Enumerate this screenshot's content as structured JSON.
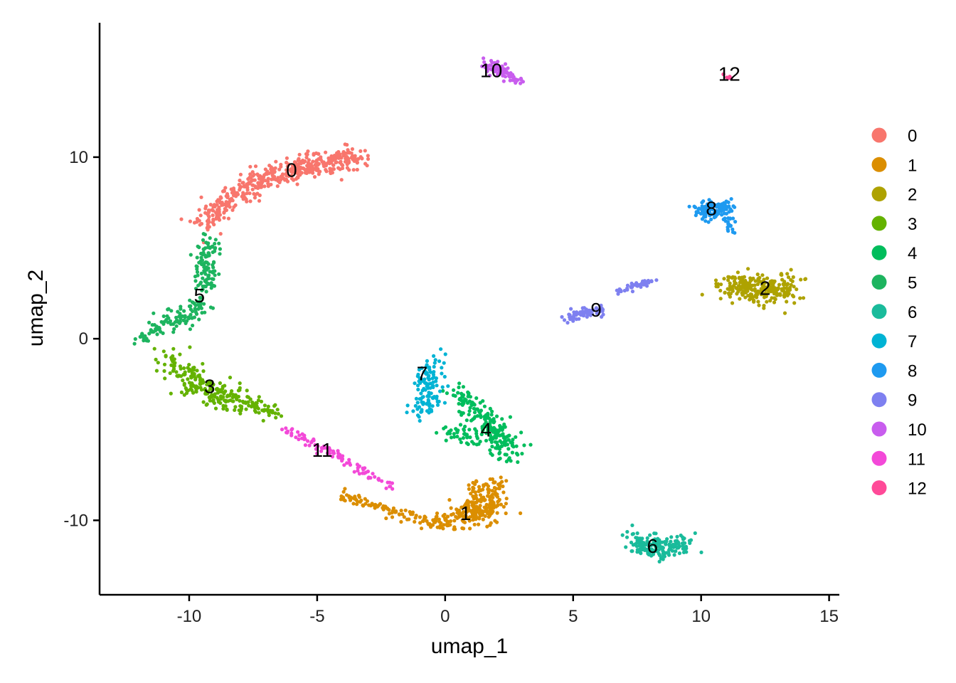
{
  "chart_data": {
    "type": "scatter",
    "xlabel": "umap_1",
    "ylabel": "umap_2",
    "xlim": [
      -13.5,
      15.4
    ],
    "ylim": [
      -14.1,
      17.4
    ],
    "xticks": [
      -10,
      -5,
      0,
      5,
      10,
      15
    ],
    "xtick_labels": [
      "-10",
      "-5",
      "0",
      "5",
      "10",
      "15"
    ],
    "yticks": [
      -10,
      0,
      10
    ],
    "ytick_labels": [
      "-10",
      "0",
      "10"
    ],
    "grid": false,
    "legend_position": "right",
    "series": [
      {
        "name": "0",
        "color": "#F8766D",
        "label_pos": [
          -6.0,
          9.2
        ],
        "segments": [
          {
            "from": [
              -9.5,
              6.3
            ],
            "to": [
              -8.0,
              8.2
            ],
            "count": 120,
            "spread": 0.55
          },
          {
            "from": [
              -8.0,
              8.2
            ],
            "to": [
              -6.0,
              9.3
            ],
            "count": 140,
            "spread": 0.55
          },
          {
            "from": [
              -6.0,
              9.3
            ],
            "to": [
              -3.4,
              10.0
            ],
            "count": 200,
            "spread": 0.6
          }
        ]
      },
      {
        "name": "1",
        "color": "#DB8E00",
        "label_pos": [
          0.8,
          -9.7
        ],
        "segments": [
          {
            "from": [
              -4.0,
              -8.6
            ],
            "to": [
              -2.0,
              -9.5
            ],
            "count": 50,
            "spread": 0.25
          },
          {
            "from": [
              -2.0,
              -9.5
            ],
            "to": [
              0.0,
              -10.3
            ],
            "count": 60,
            "spread": 0.35
          },
          {
            "from": [
              0.5,
              -9.8
            ],
            "to": [
              2.0,
              -9.0
            ],
            "count": 200,
            "spread": 0.75
          },
          {
            "from": [
              1.2,
              -8.2
            ],
            "to": [
              2.2,
              -8.0
            ],
            "count": 40,
            "spread": 0.4
          }
        ]
      },
      {
        "name": "2",
        "color": "#AEA200",
        "label_pos": [
          12.5,
          2.7
        ],
        "segments": [
          {
            "from": [
              11.0,
              2.9
            ],
            "to": [
              13.5,
              2.7
            ],
            "count": 260,
            "spread": 0.75
          }
        ]
      },
      {
        "name": "3",
        "color": "#64B200",
        "label_pos": [
          -9.2,
          -2.7
        ],
        "segments": [
          {
            "from": [
              -11.0,
              -1.0
            ],
            "to": [
              -9.5,
              -2.8
            ],
            "count": 90,
            "spread": 0.6
          },
          {
            "from": [
              -9.5,
              -2.8
            ],
            "to": [
              -8.0,
              -3.4
            ],
            "count": 110,
            "spread": 0.65
          },
          {
            "from": [
              -8.0,
              -3.4
            ],
            "to": [
              -6.6,
              -4.2
            ],
            "count": 50,
            "spread": 0.35
          }
        ]
      },
      {
        "name": "4",
        "color": "#00BD5C",
        "label_pos": [
          1.6,
          -5.1
        ],
        "segments": [
          {
            "from": [
              0.5,
              -3.0
            ],
            "to": [
              1.6,
              -4.5
            ],
            "count": 70,
            "spread": 0.5
          },
          {
            "from": [
              1.6,
              -4.5
            ],
            "to": [
              2.6,
              -6.3
            ],
            "count": 130,
            "spread": 0.7
          },
          {
            "from": [
              0.0,
              -5.0
            ],
            "to": [
              1.2,
              -5.5
            ],
            "count": 40,
            "spread": 0.5
          }
        ]
      },
      {
        "name": "5",
        "color": "#1DB45F",
        "label_pos": [
          -9.6,
          2.3
        ],
        "segments": [
          {
            "from": [
              -9.3,
              5.5
            ],
            "to": [
              -9.4,
              2.8
            ],
            "count": 110,
            "spread": 0.4
          },
          {
            "from": [
              -9.6,
              2.0
            ],
            "to": [
              -11.0,
              0.7
            ],
            "count": 80,
            "spread": 0.55
          },
          {
            "from": [
              -11.0,
              0.7
            ],
            "to": [
              -11.9,
              0.0
            ],
            "count": 30,
            "spread": 0.3
          }
        ]
      },
      {
        "name": "6",
        "color": "#1ABB9B",
        "label_pos": [
          8.1,
          -11.5
        ],
        "segments": [
          {
            "from": [
              7.3,
              -11.3
            ],
            "to": [
              9.3,
              -11.5
            ],
            "count": 180,
            "spread": 0.6
          }
        ]
      },
      {
        "name": "7",
        "color": "#00B3D4",
        "label_pos": [
          -0.9,
          -2.0
        ],
        "segments": [
          {
            "from": [
              -0.5,
              -1.0
            ],
            "to": [
              -0.8,
              -4.0
            ],
            "count": 120,
            "spread": 0.5
          }
        ]
      },
      {
        "name": "8",
        "color": "#1E9AF0",
        "label_pos": [
          10.4,
          7.1
        ],
        "segments": [
          {
            "from": [
              10.0,
              7.0
            ],
            "to": [
              11.0,
              7.2
            ],
            "count": 110,
            "spread": 0.5
          },
          {
            "from": [
              11.0,
              6.8
            ],
            "to": [
              11.2,
              5.8
            ],
            "count": 20,
            "spread": 0.2
          }
        ]
      },
      {
        "name": "9",
        "color": "#7E80F0",
        "label_pos": [
          5.9,
          1.5
        ],
        "segments": [
          {
            "from": [
              4.8,
              1.2
            ],
            "to": [
              6.1,
              1.6
            ],
            "count": 70,
            "spread": 0.25
          },
          {
            "from": [
              6.8,
              2.6
            ],
            "to": [
              8.2,
              3.2
            ],
            "count": 40,
            "spread": 0.15
          }
        ]
      },
      {
        "name": "10",
        "color": "#C85DEE",
        "label_pos": [
          1.8,
          14.7
        ],
        "segments": [
          {
            "from": [
              1.5,
              15.2
            ],
            "to": [
              2.8,
              14.2
            ],
            "count": 80,
            "spread": 0.35
          }
        ]
      },
      {
        "name": "11",
        "color": "#F349D8",
        "label_pos": [
          -4.8,
          -6.2
        ],
        "segments": [
          {
            "from": [
              -6.3,
              -5.0
            ],
            "to": [
              -4.5,
              -6.2
            ],
            "count": 40,
            "spread": 0.25
          },
          {
            "from": [
              -4.5,
              -6.2
            ],
            "to": [
              -2.0,
              -8.3
            ],
            "count": 50,
            "spread": 0.2
          }
        ]
      },
      {
        "name": "12",
        "color": "#FF4A98",
        "label_pos": [
          11.1,
          14.5
        ],
        "segments": [
          {
            "from": [
              10.8,
              14.6
            ],
            "to": [
              11.2,
              14.3
            ],
            "count": 6,
            "spread": 0.1
          }
        ]
      }
    ]
  }
}
